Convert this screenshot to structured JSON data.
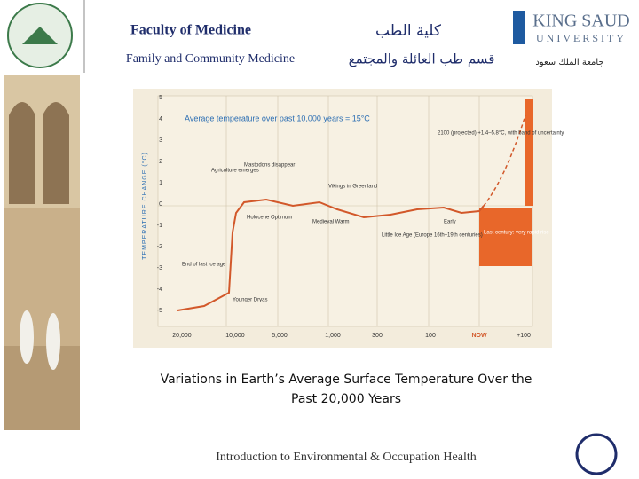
{
  "header": {
    "title_en": "Faculty of Medicine",
    "title_ar": "كلية الطب",
    "dept_en": "Family and Community Medicine",
    "dept_ar": "قسم طب العائلة والمجتمع",
    "logo_en_1": "KING SAUD",
    "logo_en_2": "UNIVERSITY",
    "logo_ar": "جامعة الملك سعود"
  },
  "figure": {
    "title": "Average temperature over past 10,000 years = 15°C",
    "y_label": "TEMPERATURE CHANGE (°C)",
    "yticks": [
      "5",
      "4",
      "3",
      "2",
      "1",
      "0",
      "-1",
      "-2",
      "-3",
      "-4",
      "-5"
    ],
    "xticks": [
      "20,000",
      "10,000",
      "5,000",
      "1,000",
      "300",
      "100",
      "NOW",
      "+100"
    ],
    "annotations": [
      "2100 (projected) +1.4–5.8°C, with band of uncertainty",
      "Agriculture emerges",
      "Mastodons disappear",
      "Vikings in Greenland",
      "Holocene Optimum",
      "Medieval Warm",
      "Little Ice Age (Europe 16th–19th centuries)",
      "Early",
      "End of last ice age",
      "Younger Dryas",
      "Last century: very rapid rise"
    ]
  },
  "caption": {
    "line1": "Variations in Earth’s Average Surface Temperature Over the",
    "line2": "Past 20,000 Years"
  },
  "footer": "Introduction to Environmental & Occupation Health"
}
